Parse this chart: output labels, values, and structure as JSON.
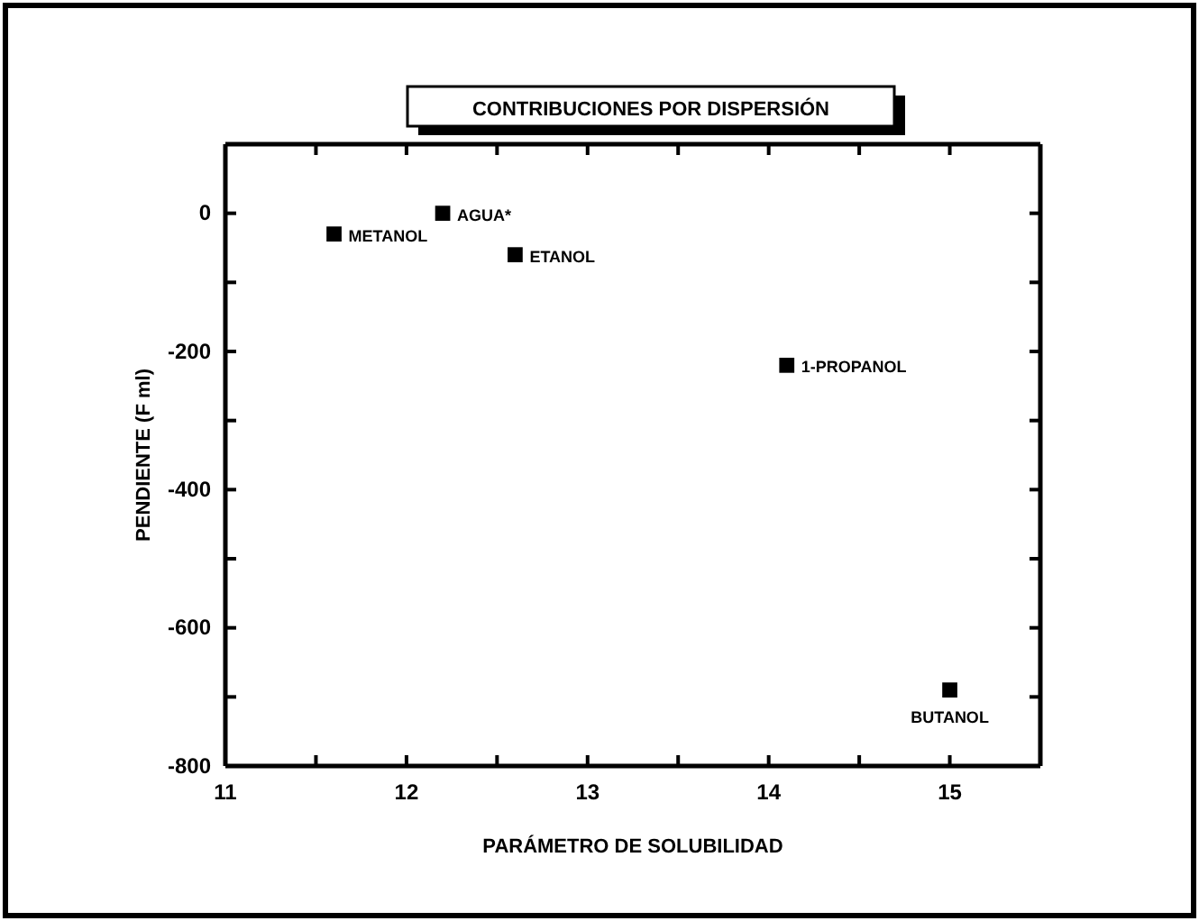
{
  "chart_data": {
    "type": "scatter",
    "title": "CONTRIBUCIONES POR DISPERSIÓN",
    "xlabel": "PARÁMETRO DE SOLUBILIDAD",
    "ylabel": "PENDIENTE (F ml)",
    "x": [
      11.6,
      12.2,
      12.6,
      14.1,
      15.0
    ],
    "values": [
      -30,
      0,
      -60,
      -220,
      -690
    ],
    "color": "#000000",
    "marker": "square",
    "grid": false,
    "xlim": [
      11,
      15.5
    ],
    "ylim": [
      -800,
      100
    ],
    "xticks": [
      11,
      {
        "value": 11.5,
        "label": null
      },
      12,
      {
        "value": 12.5,
        "label": null
      },
      13,
      {
        "value": 13.5,
        "label": null
      },
      14,
      {
        "value": 14.5,
        "label": null
      },
      15
    ],
    "yticks": [
      -800,
      {
        "value": -700,
        "label": null
      },
      -600,
      {
        "value": -500,
        "label": null
      },
      -400,
      {
        "value": -300,
        "label": null
      },
      -200,
      {
        "value": -100,
        "label": null
      },
      0
    ],
    "annotations": [
      {
        "text": "METANOL",
        "x": 11.6,
        "y": -30
      },
      {
        "text": "AGUA*",
        "x": 12.2,
        "y": 0
      },
      {
        "text": "ETANOL",
        "x": 12.6,
        "y": -60
      },
      {
        "text": "1-PROPANOL",
        "x": 14.1,
        "y": -220
      },
      {
        "text": "BUTANOL",
        "x": 15.0,
        "y": -690
      }
    ]
  }
}
